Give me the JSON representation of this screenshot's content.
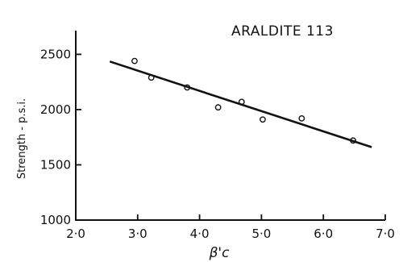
{
  "chart_data": {
    "type": "scatter",
    "title": "",
    "xlabel": "β'c",
    "ylabel": "Strength - p.s.i.",
    "annotation": "ARALDITE 113",
    "xlim": [
      2.0,
      7.0
    ],
    "ylim": [
      1000,
      2700
    ],
    "x_ticks": [
      2.0,
      3.0,
      4.0,
      5.0,
      6.0,
      7.0
    ],
    "x_tick_labels": [
      "2·0",
      "3·0",
      "4·0",
      "5·0",
      "6·0",
      "7·0"
    ],
    "y_ticks": [
      1000,
      1500,
      2000,
      2500
    ],
    "y_tick_labels": [
      "1000",
      "1500",
      "2000",
      "2500"
    ],
    "grid": false,
    "series": [
      {
        "type": "scatter",
        "marker": "open-circle",
        "points": [
          {
            "x": 2.95,
            "y": 2440
          },
          {
            "x": 3.22,
            "y": 2290
          },
          {
            "x": 3.8,
            "y": 2200
          },
          {
            "x": 4.3,
            "y": 2020
          },
          {
            "x": 4.68,
            "y": 2070
          },
          {
            "x": 5.02,
            "y": 1910
          },
          {
            "x": 5.65,
            "y": 1920
          },
          {
            "x": 6.48,
            "y": 1720
          }
        ]
      },
      {
        "type": "line",
        "points": [
          {
            "x": 2.55,
            "y": 2435
          },
          {
            "x": 6.78,
            "y": 1660
          }
        ]
      }
    ]
  }
}
